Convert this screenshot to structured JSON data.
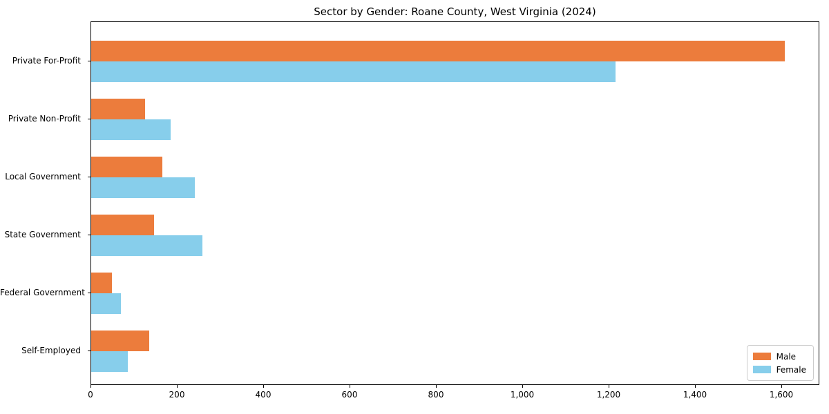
{
  "title": "Sector by Gender: Roane County, West Virginia (2024)",
  "colors": {
    "male": "#ec7c3c",
    "female": "#87ceeb",
    "axis": "#000000",
    "legend_border": "#cccccc",
    "background": "#ffffff"
  },
  "legend": {
    "position": "lower right",
    "items": [
      {
        "label": "Male",
        "color": "#ec7c3c"
      },
      {
        "label": "Female",
        "color": "#87ceeb"
      }
    ]
  },
  "chart_data": {
    "type": "bar",
    "orientation": "horizontal",
    "title": "Sector by Gender: Roane County, West Virginia (2024)",
    "categories": [
      "Private For-Profit",
      "Private Non-Profit",
      "Local Government",
      "State Government",
      "Federal Government",
      "Self-Employed"
    ],
    "series": [
      {
        "name": "Male",
        "color": "#ec7c3c",
        "values": [
          1606,
          125,
          165,
          146,
          48,
          135
        ]
      },
      {
        "name": "Female",
        "color": "#87ceeb",
        "values": [
          1215,
          184,
          240,
          258,
          68,
          85
        ]
      }
    ],
    "xlabel": "",
    "ylabel": "",
    "xlim": [
      0,
      1688
    ],
    "xticks": [
      0,
      200,
      400,
      600,
      800,
      1000,
      1200,
      1400,
      1600
    ],
    "xtick_labels": [
      "0",
      "200",
      "400",
      "600",
      "800",
      "1,000",
      "1,200",
      "1,400",
      "1,600"
    ],
    "grid": false,
    "legend_position": "lower right"
  }
}
